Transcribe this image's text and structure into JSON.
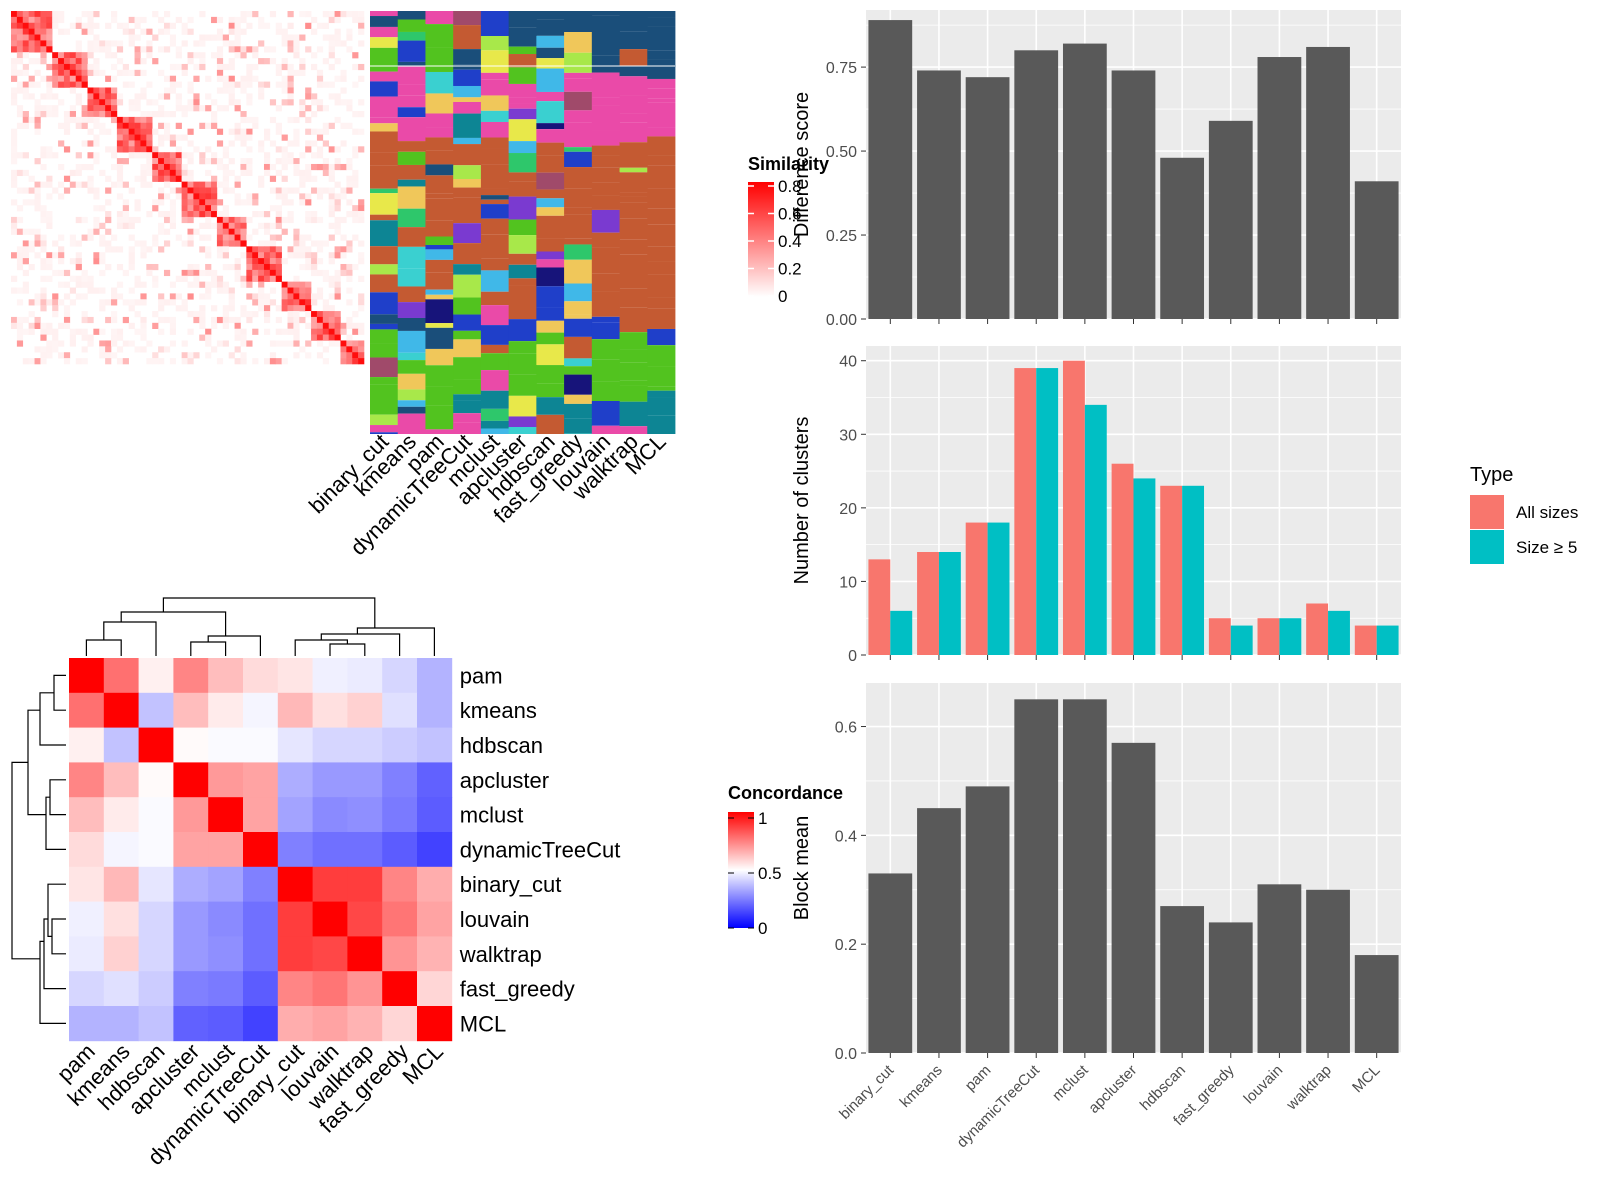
{
  "methods": [
    "binary_cut",
    "kmeans",
    "pam",
    "dynamicTreeCut",
    "mclust",
    "apcluster",
    "hdbscan",
    "fast_greedy",
    "louvain",
    "walktrap",
    "MCL"
  ],
  "colors": {
    "bar_fill": "#595959",
    "panel_bg": "#ebebeb",
    "grid": "#ffffff",
    "all_sizes": "#f8766d",
    "size_ge5": "#00bfc4",
    "heat_high": "#ff0000",
    "heat_mid": "#ffffff",
    "heat_low": "#0000ff"
  },
  "similarity_legend": {
    "title": "Similarity",
    "ticks": [
      "0.8",
      "0.6",
      "0.4",
      "0.2",
      "0"
    ]
  },
  "concordance_legend": {
    "title": "Concordance",
    "ticks": [
      "1",
      "0.5",
      "0"
    ]
  },
  "concordance_heatmap": {
    "order": [
      "pam",
      "kmeans",
      "hdbscan",
      "apcluster",
      "mclust",
      "dynamicTreeCut",
      "binary_cut",
      "louvain",
      "walktrap",
      "fast_greedy",
      "MCL"
    ],
    "matrix": [
      [
        1.0,
        0.78,
        0.53,
        0.74,
        0.63,
        0.57,
        0.55,
        0.47,
        0.46,
        0.42,
        0.35
      ],
      [
        0.78,
        1.0,
        0.38,
        0.63,
        0.54,
        0.48,
        0.64,
        0.56,
        0.59,
        0.44,
        0.35
      ],
      [
        0.53,
        0.38,
        1.0,
        0.51,
        0.49,
        0.49,
        0.45,
        0.42,
        0.42,
        0.4,
        0.38
      ],
      [
        0.74,
        0.63,
        0.51,
        1.0,
        0.7,
        0.68,
        0.34,
        0.3,
        0.3,
        0.25,
        0.19
      ],
      [
        0.63,
        0.54,
        0.49,
        0.7,
        1.0,
        0.68,
        0.32,
        0.27,
        0.28,
        0.24,
        0.18
      ],
      [
        0.57,
        0.48,
        0.49,
        0.68,
        0.68,
        1.0,
        0.25,
        0.22,
        0.22,
        0.18,
        0.13
      ],
      [
        0.55,
        0.64,
        0.45,
        0.34,
        0.32,
        0.25,
        1.0,
        0.88,
        0.88,
        0.74,
        0.66
      ],
      [
        0.47,
        0.56,
        0.42,
        0.3,
        0.27,
        0.22,
        0.88,
        1.0,
        0.86,
        0.77,
        0.68
      ],
      [
        0.46,
        0.59,
        0.42,
        0.3,
        0.28,
        0.22,
        0.88,
        0.86,
        1.0,
        0.71,
        0.65
      ],
      [
        0.42,
        0.44,
        0.4,
        0.25,
        0.24,
        0.18,
        0.74,
        0.77,
        0.71,
        1.0,
        0.58
      ],
      [
        0.35,
        0.35,
        0.38,
        0.19,
        0.18,
        0.13,
        0.66,
        0.68,
        0.65,
        0.58,
        1.0
      ]
    ]
  },
  "chart_data": [
    {
      "type": "heatmap",
      "title": "",
      "legend_title": "Similarity",
      "legend_range": [
        0,
        0.85
      ],
      "column_labels": [
        "binary_cut",
        "kmeans",
        "pam",
        "dynamicTreeCut",
        "mclust",
        "apcluster",
        "hdbscan",
        "fast_greedy",
        "louvain",
        "walktrap",
        "MCL"
      ]
    },
    {
      "type": "heatmap",
      "title": "",
      "legend_title": "Concordance",
      "legend_range": [
        0,
        1
      ],
      "row_labels": [
        "pam",
        "kmeans",
        "hdbscan",
        "apcluster",
        "mclust",
        "dynamicTreeCut",
        "binary_cut",
        "louvain",
        "walktrap",
        "fast_greedy",
        "MCL"
      ],
      "column_labels": [
        "pam",
        "kmeans",
        "hdbscan",
        "apcluster",
        "mclust",
        "dynamicTreeCut",
        "binary_cut",
        "louvain",
        "walktrap",
        "fast_greedy",
        "MCL"
      ]
    },
    {
      "type": "bar",
      "title": "",
      "xlabel": "",
      "ylabel": "Difference score",
      "categories": [
        "binary_cut",
        "kmeans",
        "pam",
        "dynamicTreeCut",
        "mclust",
        "apcluster",
        "hdbscan",
        "fast_greedy",
        "louvain",
        "walktrap",
        "MCL"
      ],
      "values": [
        0.89,
        0.74,
        0.72,
        0.8,
        0.82,
        0.74,
        0.48,
        0.59,
        0.78,
        0.81,
        0.41
      ],
      "ylim": [
        0,
        0.92
      ],
      "yticks": [
        "0.00",
        "0.25",
        "0.50",
        "0.75"
      ],
      "grid": true
    },
    {
      "type": "bar",
      "title": "",
      "xlabel": "",
      "ylabel": "Number of clusters",
      "categories": [
        "binary_cut",
        "kmeans",
        "pam",
        "dynamicTreeCut",
        "mclust",
        "apcluster",
        "hdbscan",
        "fast_greedy",
        "louvain",
        "walktrap",
        "MCL"
      ],
      "series": [
        {
          "name": "All sizes",
          "values": [
            13,
            14,
            18,
            39,
            40,
            26,
            23,
            5,
            5,
            7,
            4
          ]
        },
        {
          "name": "Size ≥ 5",
          "values": [
            6,
            14,
            18,
            39,
            34,
            24,
            23,
            4,
            5,
            6,
            4
          ]
        }
      ],
      "legend_title": "Type",
      "legend_position": "right",
      "ylim": [
        0,
        42
      ],
      "yticks": [
        "0",
        "10",
        "20",
        "30",
        "40"
      ],
      "grid": true
    },
    {
      "type": "bar",
      "title": "",
      "xlabel": "",
      "ylabel": "Block mean",
      "categories": [
        "binary_cut",
        "kmeans",
        "pam",
        "dynamicTreeCut",
        "mclust",
        "apcluster",
        "hdbscan",
        "fast_greedy",
        "louvain",
        "walktrap",
        "MCL"
      ],
      "values": [
        0.33,
        0.45,
        0.49,
        0.65,
        0.65,
        0.57,
        0.27,
        0.24,
        0.31,
        0.3,
        0.18
      ],
      "ylim": [
        0,
        0.68
      ],
      "yticks": [
        "0.0",
        "0.2",
        "0.4",
        "0.6"
      ],
      "grid": true
    }
  ]
}
